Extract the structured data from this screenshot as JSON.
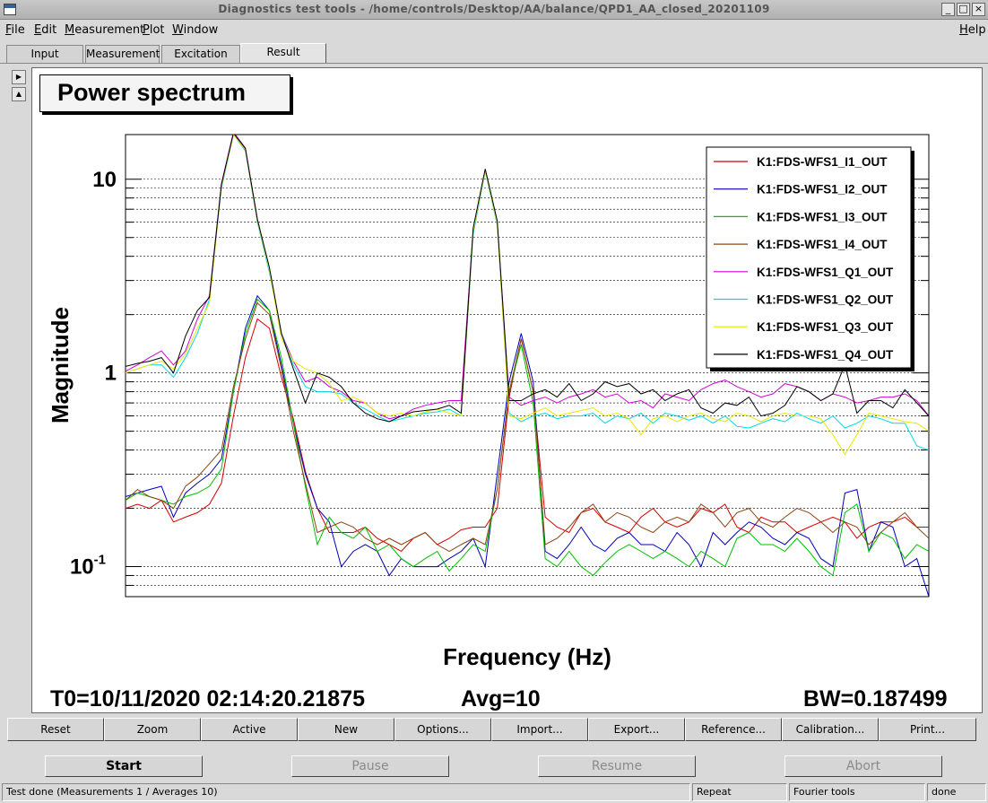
{
  "window": {
    "title": "Diagnostics test tools - /home/controls/Desktop/AA/balance/QPD1_AA_closed_20201109"
  },
  "menu": {
    "file": "File",
    "edit": "Edit",
    "measurement": "Measurement",
    "plot": "Plot",
    "window": "Window",
    "help": "Help"
  },
  "tabs": [
    "Input",
    "Measurement",
    "Excitation",
    "Result"
  ],
  "plot": {
    "title": "Power spectrum",
    "T0": "T0=10/11/2020 02:14:20.21875",
    "avg": "Avg=10",
    "bw": "BW=0.187499"
  },
  "chart_data": {
    "type": "line",
    "title": "Power spectrum",
    "xlabel": "Frequency (Hz)",
    "ylabel": "Magnitude",
    "y_scale": "log",
    "ylim": [
      0.07,
      17
    ],
    "y_ticks": [
      {
        "value": 10,
        "label": "10"
      },
      {
        "value": 1,
        "label": "1"
      },
      {
        "value": 0.1,
        "label": "10",
        "exp": "-1"
      }
    ],
    "legend_position": "top-right",
    "grid": "horizontal",
    "series": [
      {
        "name": "K1:FDS-WFS1_I1_OUT",
        "color": "#d40000",
        "values": [
          0.2,
          0.21,
          0.2,
          0.22,
          0.17,
          0.18,
          0.19,
          0.21,
          0.27,
          0.6,
          1.2,
          1.9,
          1.7,
          0.95,
          0.58,
          0.31,
          0.2,
          0.15,
          0.15,
          0.15,
          0.16,
          0.14,
          0.13,
          0.12,
          0.14,
          0.15,
          0.13,
          0.14,
          0.155,
          0.16,
          0.16,
          0.2,
          0.75,
          1.5,
          0.8,
          0.18,
          0.16,
          0.15,
          0.19,
          0.2,
          0.17,
          0.16,
          0.15,
          0.18,
          0.2,
          0.17,
          0.16,
          0.17,
          0.2,
          0.19,
          0.21,
          0.16,
          0.15,
          0.18,
          0.17,
          0.17,
          0.15,
          0.16,
          0.17,
          0.18,
          0.17,
          0.14,
          0.16,
          0.17,
          0.17,
          0.18,
          0.16,
          0.16
        ]
      },
      {
        "name": "K1:FDS-WFS1_I2_OUT",
        "color": "#0000b8",
        "values": [
          0.23,
          0.24,
          0.25,
          0.26,
          0.18,
          0.24,
          0.27,
          0.3,
          0.36,
          0.8,
          1.7,
          2.5,
          2.1,
          1.1,
          0.55,
          0.3,
          0.2,
          0.17,
          0.1,
          0.12,
          0.13,
          0.12,
          0.09,
          0.11,
          0.1,
          0.1,
          0.1,
          0.11,
          0.12,
          0.14,
          0.1,
          0.3,
          0.9,
          1.6,
          0.9,
          0.12,
          0.11,
          0.13,
          0.16,
          0.13,
          0.12,
          0.14,
          0.15,
          0.13,
          0.13,
          0.12,
          0.15,
          0.13,
          0.1,
          0.15,
          0.13,
          0.15,
          0.17,
          0.16,
          0.14,
          0.13,
          0.15,
          0.14,
          0.11,
          0.1,
          0.24,
          0.25,
          0.12,
          0.17,
          0.16,
          0.1,
          0.11,
          0.07
        ]
      },
      {
        "name": "K1:FDS-WFS1_I3_OUT",
        "color": "#00c000",
        "values": [
          0.22,
          0.24,
          0.23,
          0.22,
          0.21,
          0.23,
          0.24,
          0.26,
          0.32,
          0.8,
          1.6,
          2.4,
          2.1,
          1.2,
          0.55,
          0.26,
          0.13,
          0.18,
          0.15,
          0.14,
          0.16,
          0.12,
          0.13,
          0.11,
          0.1,
          0.11,
          0.12,
          0.095,
          0.11,
          0.13,
          0.12,
          0.25,
          0.8,
          1.4,
          0.7,
          0.11,
          0.1,
          0.12,
          0.1,
          0.09,
          0.105,
          0.12,
          0.13,
          0.12,
          0.11,
          0.12,
          0.11,
          0.1,
          0.12,
          0.11,
          0.1,
          0.14,
          0.15,
          0.13,
          0.13,
          0.12,
          0.14,
          0.12,
          0.1,
          0.09,
          0.19,
          0.21,
          0.12,
          0.15,
          0.14,
          0.11,
          0.13,
          0.12
        ]
      },
      {
        "name": "K1:FDS-WFS1_I4_OUT",
        "color": "#8b4513",
        "values": [
          0.22,
          0.25,
          0.23,
          0.22,
          0.2,
          0.26,
          0.29,
          0.34,
          0.4,
          0.85,
          1.5,
          2.3,
          2.0,
          1.05,
          0.5,
          0.27,
          0.15,
          0.16,
          0.17,
          0.16,
          0.14,
          0.13,
          0.14,
          0.13,
          0.14,
          0.15,
          0.13,
          0.12,
          0.13,
          0.14,
          0.13,
          0.25,
          0.8,
          1.5,
          0.8,
          0.13,
          0.14,
          0.16,
          0.19,
          0.21,
          0.17,
          0.19,
          0.18,
          0.16,
          0.15,
          0.17,
          0.18,
          0.17,
          0.21,
          0.19,
          0.16,
          0.19,
          0.2,
          0.17,
          0.16,
          0.18,
          0.2,
          0.19,
          0.17,
          0.15,
          0.17,
          0.16,
          0.13,
          0.15,
          0.17,
          0.19,
          0.16,
          0.14
        ]
      },
      {
        "name": "K1:FDS-WFS1_Q1_OUT",
        "color": "#d400d4",
        "values": [
          1.02,
          1.1,
          1.2,
          1.3,
          1.1,
          1.3,
          1.9,
          2.5,
          9.5,
          17.5,
          14.5,
          6.2,
          3.4,
          1.6,
          1.15,
          0.9,
          0.95,
          0.85,
          0.8,
          0.72,
          0.7,
          0.62,
          0.58,
          0.6,
          0.65,
          0.68,
          0.7,
          0.72,
          0.72,
          5.5,
          11.2,
          6.0,
          0.75,
          0.68,
          0.72,
          0.75,
          0.7,
          0.75,
          0.78,
          0.82,
          0.75,
          0.78,
          0.7,
          0.72,
          0.66,
          0.78,
          0.75,
          0.72,
          0.82,
          0.88,
          0.92,
          0.85,
          0.8,
          0.75,
          0.78,
          0.88,
          0.85,
          0.8,
          0.72,
          0.78,
          0.75,
          0.7,
          0.72,
          0.75,
          0.75,
          0.78,
          0.72,
          0.6
        ]
      },
      {
        "name": "K1:FDS-WFS1_Q2_OUT",
        "color": "#00d8e8",
        "values": [
          1.0,
          1.05,
          1.1,
          1.1,
          0.95,
          1.2,
          1.6,
          2.4,
          9.0,
          17.0,
          14.0,
          6.0,
          3.3,
          1.6,
          1.1,
          0.85,
          0.8,
          0.8,
          0.78,
          0.7,
          0.65,
          0.6,
          0.56,
          0.58,
          0.6,
          0.62,
          0.63,
          0.65,
          0.6,
          5.2,
          11.0,
          5.8,
          0.62,
          0.56,
          0.6,
          0.62,
          0.58,
          0.6,
          0.6,
          0.62,
          0.55,
          0.6,
          0.58,
          0.62,
          0.55,
          0.62,
          0.6,
          0.57,
          0.6,
          0.55,
          0.6,
          0.53,
          0.52,
          0.55,
          0.58,
          0.56,
          0.62,
          0.58,
          0.55,
          0.6,
          0.52,
          0.55,
          0.6,
          0.58,
          0.55,
          0.55,
          0.42,
          0.4
        ]
      },
      {
        "name": "K1:FDS-WFS1_Q3_OUT",
        "color": "#e8e800",
        "values": [
          1.0,
          1.05,
          1.1,
          1.15,
          1.05,
          1.25,
          1.7,
          2.3,
          9.2,
          17.0,
          14.2,
          6.1,
          3.4,
          1.5,
          1.15,
          1.05,
          1.0,
          0.88,
          0.72,
          0.75,
          0.7,
          0.62,
          0.6,
          0.62,
          0.6,
          0.63,
          0.65,
          0.62,
          0.6,
          5.4,
          11.1,
          5.9,
          0.6,
          0.58,
          0.62,
          0.66,
          0.6,
          0.62,
          0.64,
          0.66,
          0.6,
          0.62,
          0.58,
          0.48,
          0.58,
          0.6,
          0.56,
          0.6,
          0.62,
          0.58,
          0.56,
          0.62,
          0.6,
          0.56,
          0.6,
          0.62,
          0.6,
          0.6,
          0.58,
          0.48,
          0.38,
          0.48,
          0.62,
          0.6,
          0.58,
          0.56,
          0.55,
          0.5
        ]
      },
      {
        "name": "K1:FDS-WFS1_Q4_OUT",
        "color": "#000000",
        "values": [
          1.08,
          1.12,
          1.15,
          1.2,
          1.0,
          1.55,
          2.1,
          2.45,
          9.4,
          17.3,
          14.4,
          6.2,
          3.5,
          1.6,
          1.05,
          0.7,
          1.0,
          0.95,
          0.85,
          0.7,
          0.62,
          0.58,
          0.56,
          0.6,
          0.63,
          0.64,
          0.65,
          0.68,
          0.62,
          5.6,
          11.3,
          6.1,
          0.72,
          0.72,
          0.78,
          0.82,
          0.75,
          0.88,
          0.72,
          0.78,
          0.9,
          0.85,
          0.88,
          0.78,
          0.82,
          0.72,
          0.78,
          0.82,
          0.66,
          0.62,
          0.7,
          0.68,
          0.75,
          0.6,
          0.62,
          0.68,
          0.85,
          0.8,
          0.72,
          0.78,
          1.1,
          0.62,
          0.72,
          0.72,
          0.66,
          0.82,
          0.7,
          0.6
        ]
      }
    ]
  },
  "plot_buttons": [
    "Reset",
    "Zoom",
    "Active",
    "New",
    "Options...",
    "Import...",
    "Export...",
    "Reference...",
    "Calibration...",
    "Print..."
  ],
  "controls": {
    "start": "Start",
    "pause": "Pause",
    "resume": "Resume",
    "abort": "Abort"
  },
  "status": {
    "message": "Test done (Measurements 1 / Averages 10)",
    "mode": "Repeat",
    "tool": "Fourier tools",
    "state": "done"
  }
}
